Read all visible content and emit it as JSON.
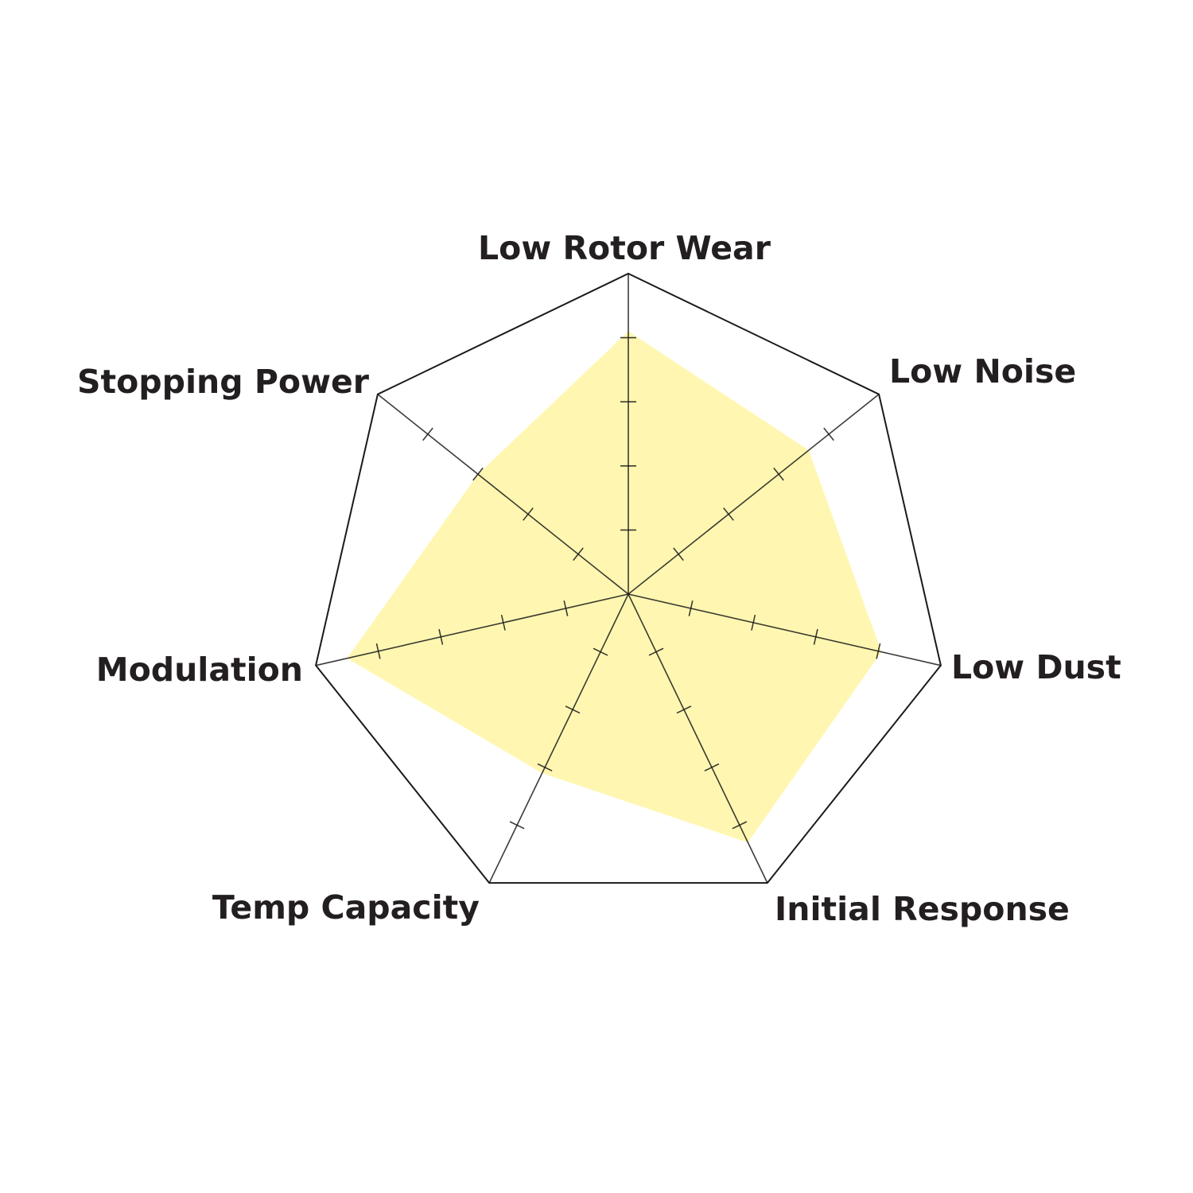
{
  "chart_data": {
    "type": "radar",
    "categories": [
      "Low Rotor Wear",
      "Low Noise",
      "Low Dust",
      "Initial Response",
      "Temp Capacity",
      "Modulation",
      "Stopping Power"
    ],
    "values": [
      4.1,
      3.6,
      4.05,
      4.3,
      3.1,
      4.5,
      3.0
    ],
    "rlim": [
      0,
      5
    ],
    "ticks": [
      1,
      2,
      3,
      4
    ],
    "legend": "none",
    "grid": "outer polygon only",
    "colors": {
      "fill": "#fff6a8",
      "line": "#1a1a1a",
      "text": "#231f20"
    }
  }
}
